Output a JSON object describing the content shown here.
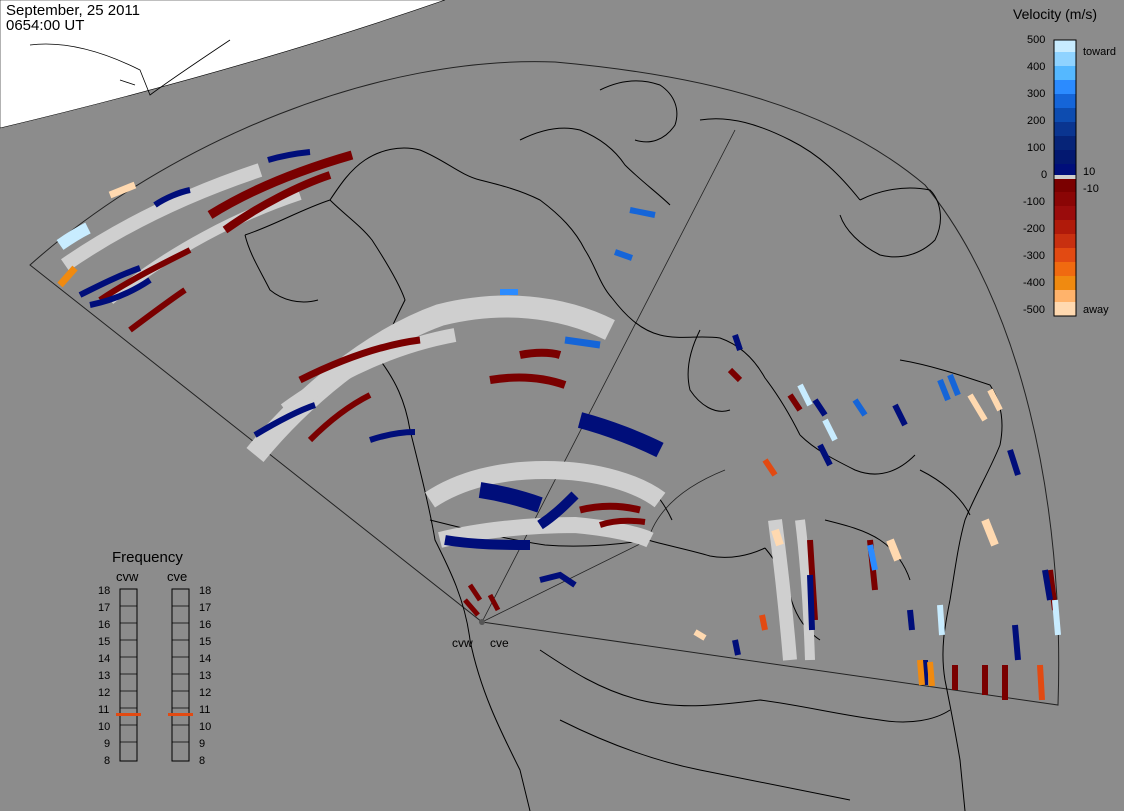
{
  "header": {
    "date": "September, 25 2011",
    "time": "0654:00 UT"
  },
  "colors": {
    "background": "#8c8c8c",
    "sea_ice": "#ffffff",
    "coast": "#000000",
    "groundscatter": "#cfcfcf",
    "toward_dark": "#000e7a",
    "toward_light": "#c8ecff",
    "away_dark": "#7a0000",
    "away_light": "#ffd9b0",
    "frequency_marker": "#e24a12"
  },
  "legend": {
    "title": "Velocity (m/s)",
    "ticks": [
      "500",
      "400",
      "300",
      "200",
      "100",
      "0",
      "-100",
      "-200",
      "-300",
      "-400",
      "-500"
    ],
    "toward_label": "toward",
    "away_label": "away",
    "pos_label": "10",
    "neg_label": "-10"
  },
  "frequency": {
    "title": "Frequency",
    "columns": [
      {
        "name": "cvw",
        "value_mhz": 10.7
      },
      {
        "name": "cve",
        "value_mhz": 10.7
      }
    ],
    "ticks": [
      "18",
      "17",
      "16",
      "15",
      "14",
      "13",
      "12",
      "11",
      "10",
      "9",
      "8"
    ]
  },
  "radars": [
    {
      "id": "cvw",
      "label": "cvw"
    },
    {
      "id": "cve",
      "label": "cve"
    }
  ]
}
